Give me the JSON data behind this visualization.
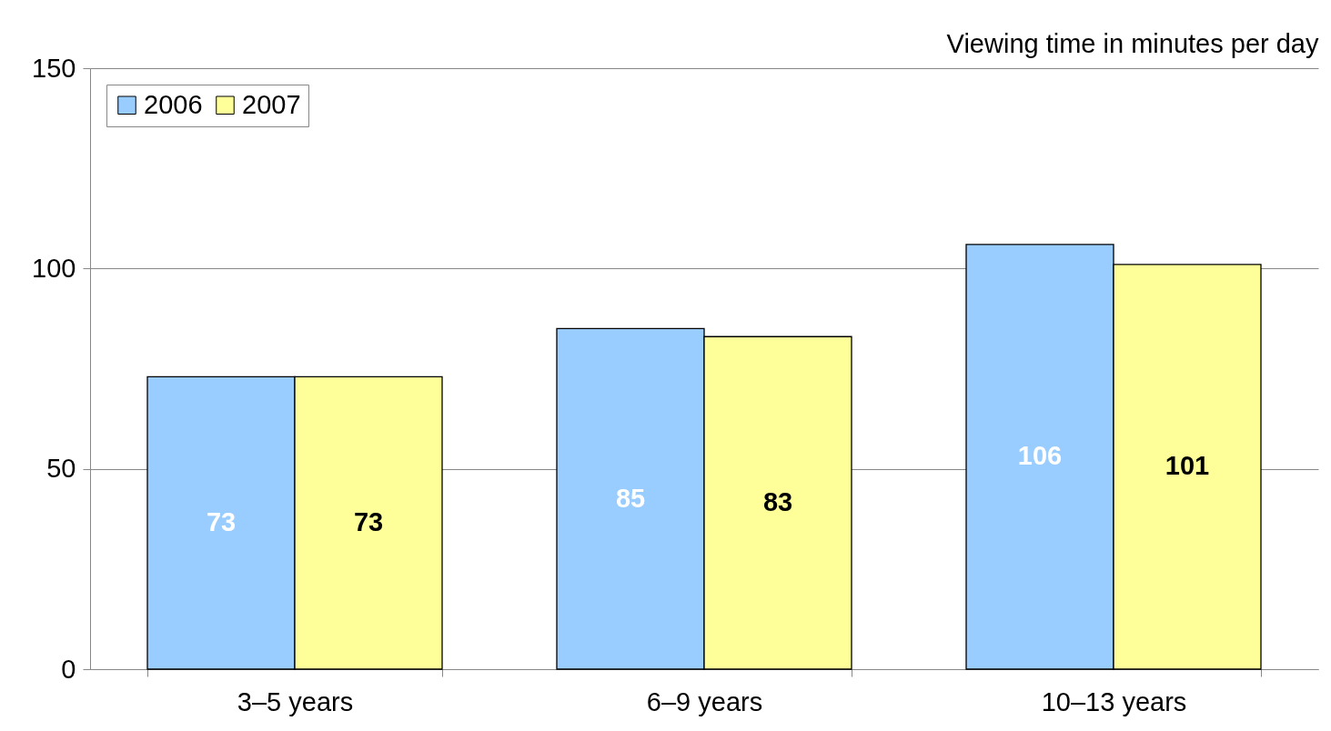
{
  "chart_data": {
    "type": "bar",
    "ylabel": "Viewing time in minutes per day",
    "categories": [
      "3–5 years",
      "6–9 years",
      "10–13 years"
    ],
    "series": [
      {
        "name": "2006",
        "color": "#99ccff",
        "values": [
          73,
          85,
          106
        ]
      },
      {
        "name": "2007",
        "color": "#ffff99",
        "values": [
          73,
          83,
          101
        ]
      }
    ],
    "ylim": [
      0,
      150
    ],
    "yticks": [
      0,
      50,
      100,
      150
    ],
    "grid": "y",
    "legend": "top left",
    "data_labels": true
  }
}
